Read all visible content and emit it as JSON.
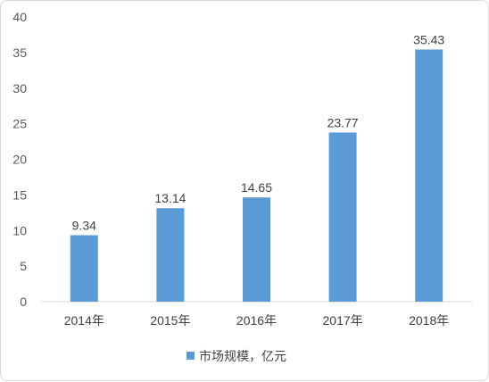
{
  "chart_data": {
    "type": "bar",
    "categories": [
      "2014年",
      "2015年",
      "2016年",
      "2017年",
      "2018年"
    ],
    "series": [
      {
        "name": "市场规模，亿元",
        "values": [
          9.34,
          13.14,
          14.65,
          23.77,
          35.43
        ],
        "data_labels": [
          "9.34",
          "13.14",
          "14.65",
          "23.77",
          "35.43"
        ]
      }
    ],
    "yticks": [
      "0",
      "5",
      "10",
      "15",
      "20",
      "25",
      "30",
      "35",
      "40"
    ],
    "ylim": [
      0,
      40
    ],
    "grid": false,
    "legend": "bottom",
    "colors": {
      "bar": "#5b9bd5",
      "axis": "#d9d9d9"
    }
  }
}
